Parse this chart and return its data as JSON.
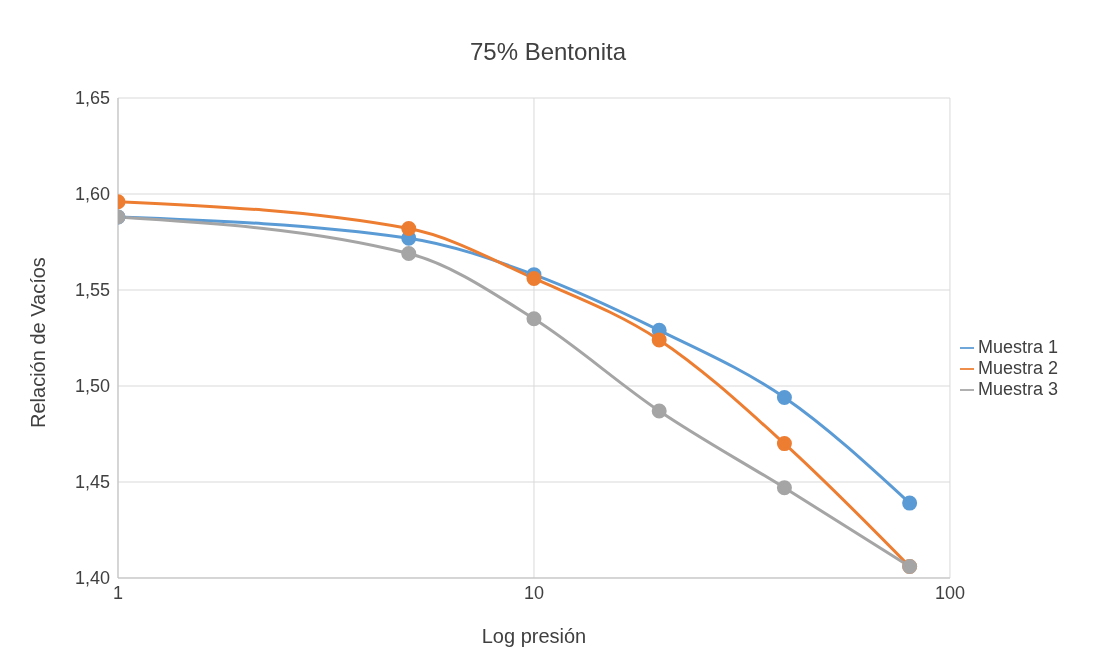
{
  "chart_data": {
    "type": "line",
    "title": "75% Bentonita",
    "xlabel": "Log presión",
    "ylabel": "Relación de Vacíos",
    "x": [
      1,
      5,
      10,
      20,
      40,
      80
    ],
    "series": [
      {
        "name": "Muestra 1",
        "color": "#5b9bd5",
        "values": [
          1.588,
          1.577,
          1.558,
          1.529,
          1.494,
          1.439
        ]
      },
      {
        "name": "Muestra 2",
        "color": "#ed7d31",
        "values": [
          1.596,
          1.582,
          1.556,
          1.524,
          1.47,
          1.406
        ]
      },
      {
        "name": "Muestra 3",
        "color": "#a5a5a5",
        "values": [
          1.588,
          1.569,
          1.535,
          1.487,
          1.447,
          1.406
        ]
      }
    ],
    "log": "x",
    "xlim": [
      1,
      100
    ],
    "xticks": [
      1,
      10,
      100
    ],
    "ylim": [
      1.4,
      1.65
    ],
    "yticks": [
      {
        "value": 1.4,
        "label": "1,40"
      },
      {
        "value": 1.45,
        "label": "1,45"
      },
      {
        "value": 1.5,
        "label": "1,50"
      },
      {
        "value": 1.55,
        "label": "1,55"
      },
      {
        "value": 1.6,
        "label": "1,60"
      },
      {
        "value": 1.65,
        "label": "1,65"
      }
    ],
    "grid": true,
    "legend": "right",
    "marker": "circle",
    "line_style": "solid"
  }
}
